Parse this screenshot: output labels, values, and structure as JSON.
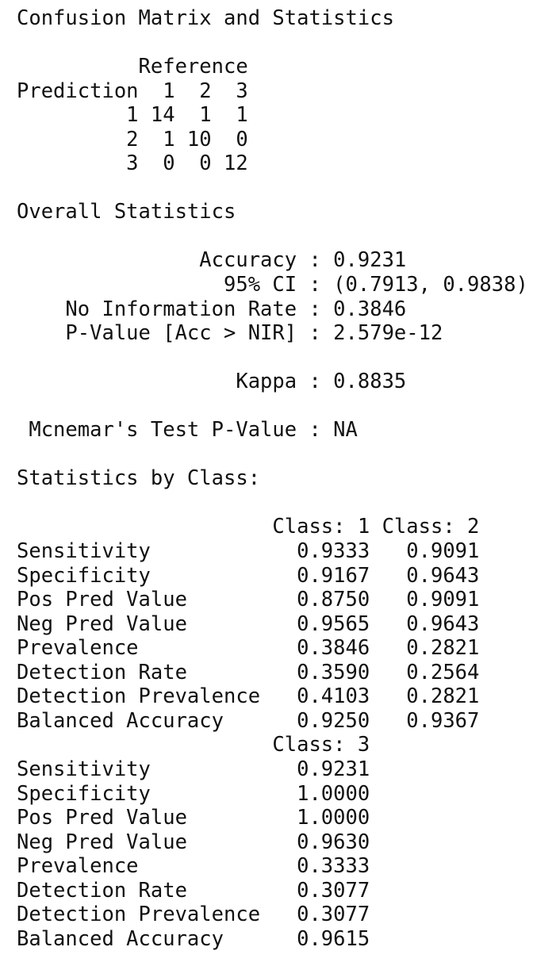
{
  "title": "Confusion Matrix and Statistics",
  "confusion_matrix": {
    "header_reference": "          Reference",
    "header_prediction": "Prediction  1  2  3",
    "rows": [
      "         1 14  1  1",
      "         2  1 10  0",
      "         3  0  0 12"
    ]
  },
  "overall": {
    "heading": "Overall Statistics",
    "accuracy": "               Accuracy : 0.9231",
    "ci": "                 95% CI : (0.7913, 0.9838)",
    "nir": "    No Information Rate : 0.3846",
    "pvalue": "    P-Value [Acc > NIR] : 2.579e-12",
    "kappa": "                  Kappa : 0.8835",
    "mcnemar": " Mcnemar's Test P-Value : NA"
  },
  "by_class": {
    "heading": "Statistics by Class:",
    "block1": {
      "header": "                     Class: 1 Class: 2",
      "rows": [
        "Sensitivity            0.9333   0.9091",
        "Specificity            0.9167   0.9643",
        "Pos Pred Value         0.8750   0.9091",
        "Neg Pred Value         0.9565   0.9643",
        "Prevalence             0.3846   0.2821",
        "Detection Rate         0.3590   0.2564",
        "Detection Prevalence   0.4103   0.2821",
        "Balanced Accuracy      0.9250   0.9367"
      ]
    },
    "block2": {
      "header": "                     Class: 3",
      "rows": [
        "Sensitivity            0.9231",
        "Specificity            1.0000",
        "Pos Pred Value         1.0000",
        "Neg Pred Value         0.9630",
        "Prevalence             0.3333",
        "Detection Rate         0.3077",
        "Detection Prevalence   0.3077",
        "Balanced Accuracy      0.9615"
      ]
    }
  }
}
